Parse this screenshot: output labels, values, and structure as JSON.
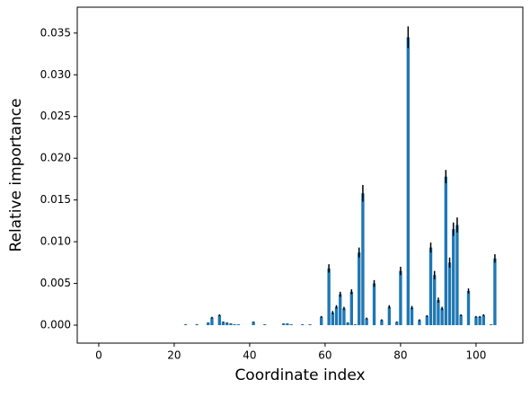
{
  "chart_data": {
    "type": "bar",
    "x_label": "Coordinate index",
    "y_label": "Relative importance",
    "x": [
      23,
      26,
      29,
      30,
      32,
      33,
      34,
      35,
      36,
      37,
      41,
      44,
      49,
      50,
      51,
      54,
      56,
      59,
      61,
      62,
      63,
      64,
      65,
      66,
      67,
      68,
      69,
      70,
      71,
      73,
      75,
      77,
      79,
      80,
      82,
      83,
      85,
      87,
      88,
      89,
      90,
      91,
      92,
      93,
      94,
      95,
      96,
      98,
      100,
      101,
      102,
      104,
      105
    ],
    "values": [
      0.0001,
      0.0001,
      0.0003,
      0.0009,
      0.0012,
      0.0004,
      0.0003,
      0.0002,
      0.0001,
      0.0001,
      0.0004,
      0.0001,
      0.0002,
      0.0002,
      0.0001,
      0.0001,
      0.0001,
      0.001,
      0.0068,
      0.0015,
      0.0022,
      0.0037,
      0.002,
      0.0003,
      0.004,
      0.0001,
      0.0087,
      0.0158,
      0.0008,
      0.005,
      0.0006,
      0.0022,
      0.0004,
      0.0065,
      0.0345,
      0.0021,
      0.0006,
      0.0011,
      0.0093,
      0.006,
      0.003,
      0.002,
      0.0178,
      0.0075,
      0.0115,
      0.012,
      0.0012,
      0.0041,
      0.001,
      0.001,
      0.0012,
      0.0001,
      0.008
    ],
    "errors": [
      2e-05,
      2e-05,
      3e-05,
      0.0001,
      0.0001,
      4e-05,
      3e-05,
      2e-05,
      1e-05,
      1e-05,
      4e-05,
      1e-05,
      2e-05,
      2e-05,
      1e-05,
      1e-05,
      1e-05,
      0.0001,
      0.0005,
      0.0002,
      0.0002,
      0.0003,
      0.0002,
      3e-05,
      0.0003,
      1e-05,
      0.0006,
      0.001,
      0.0001,
      0.0004,
      0.0001,
      0.0002,
      4e-05,
      0.0005,
      0.0013,
      0.0002,
      0.0001,
      0.0001,
      0.0006,
      0.0005,
      0.0003,
      0.0002,
      0.0008,
      0.0006,
      0.0008,
      0.0009,
      0.0001,
      0.0003,
      0.0001,
      0.0001,
      0.0001,
      1e-05,
      0.0005
    ],
    "color": "#1f77b4",
    "error_color": "#000000",
    "xlim": [
      -5.7,
      112.4
    ],
    "xticks": [
      0,
      20,
      40,
      60,
      80,
      100
    ],
    "ylim": [
      -0.00215,
      0.0381
    ],
    "yticks": [
      {
        "value": 0,
        "label": "0.000"
      },
      {
        "value": 0.005,
        "label": "0.005"
      },
      {
        "value": 0.01,
        "label": "0.010"
      },
      {
        "value": 0.015,
        "label": "0.015"
      },
      {
        "value": 0.02,
        "label": "0.020"
      },
      {
        "value": 0.025,
        "label": "0.025"
      },
      {
        "value": 0.03,
        "label": "0.030"
      },
      {
        "value": 0.035,
        "label": "0.035"
      }
    ]
  }
}
